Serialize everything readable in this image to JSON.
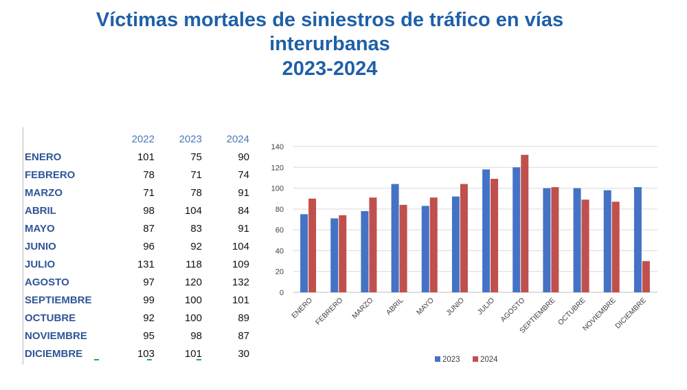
{
  "title": {
    "line1": "Víctimas mortales de siniestros de tráfico en vías",
    "line2": "interurbanas",
    "line3": "2023-2024"
  },
  "table": {
    "headers": [
      "2022",
      "2023",
      "2024"
    ],
    "rows": [
      {
        "month": "ENERO",
        "v2022": "101",
        "v2023": "75",
        "v2024": "90"
      },
      {
        "month": "FEBRERO",
        "v2022": "78",
        "v2023": "71",
        "v2024": "74"
      },
      {
        "month": "MARZO",
        "v2022": "71",
        "v2023": "78",
        "v2024": "91"
      },
      {
        "month": "ABRIL",
        "v2022": "98",
        "v2023": "104",
        "v2024": "84"
      },
      {
        "month": "MAYO",
        "v2022": "87",
        "v2023": "83",
        "v2024": "91"
      },
      {
        "month": "JUNIO",
        "v2022": "96",
        "v2023": "92",
        "v2024": "104"
      },
      {
        "month": "JULIO",
        "v2022": "131",
        "v2023": "118",
        "v2024": "109"
      },
      {
        "month": "AGOSTO",
        "v2022": "97",
        "v2023": "120",
        "v2024": "132"
      },
      {
        "month": "SEPTIEMBRE",
        "v2022": "99",
        "v2023": "100",
        "v2024": "101"
      },
      {
        "month": "OCTUBRE",
        "v2022": "92",
        "v2023": "100",
        "v2024": "89"
      },
      {
        "month": "NOVIEMBRE",
        "v2022": "95",
        "v2023": "98",
        "v2024": "87"
      },
      {
        "month": "DICIEMBRE",
        "v2022": "103",
        "v2023": "101",
        "v2024": "30"
      }
    ]
  },
  "chart_data": {
    "type": "bar",
    "categories": [
      "ENERO",
      "FEBRERO",
      "MARZO",
      "ABRIL",
      "MAYO",
      "JUNIO",
      "JULIO",
      "AGOSTO",
      "SEPTIEMBRE",
      "OCTUBRE",
      "NOVIEMBRE",
      "DICIEMBRE"
    ],
    "series": [
      {
        "name": "2023",
        "color": "#4472c4",
        "values": [
          75,
          71,
          78,
          104,
          83,
          92,
          118,
          120,
          100,
          100,
          98,
          101
        ]
      },
      {
        "name": "2024",
        "color": "#c0504d",
        "values": [
          90,
          74,
          91,
          84,
          91,
          104,
          109,
          132,
          101,
          89,
          87,
          30
        ]
      }
    ],
    "ylim": [
      0,
      140
    ],
    "yticks": [
      0,
      20,
      40,
      60,
      80,
      100,
      120,
      140
    ],
    "grid": true,
    "legend_position": "bottom"
  }
}
